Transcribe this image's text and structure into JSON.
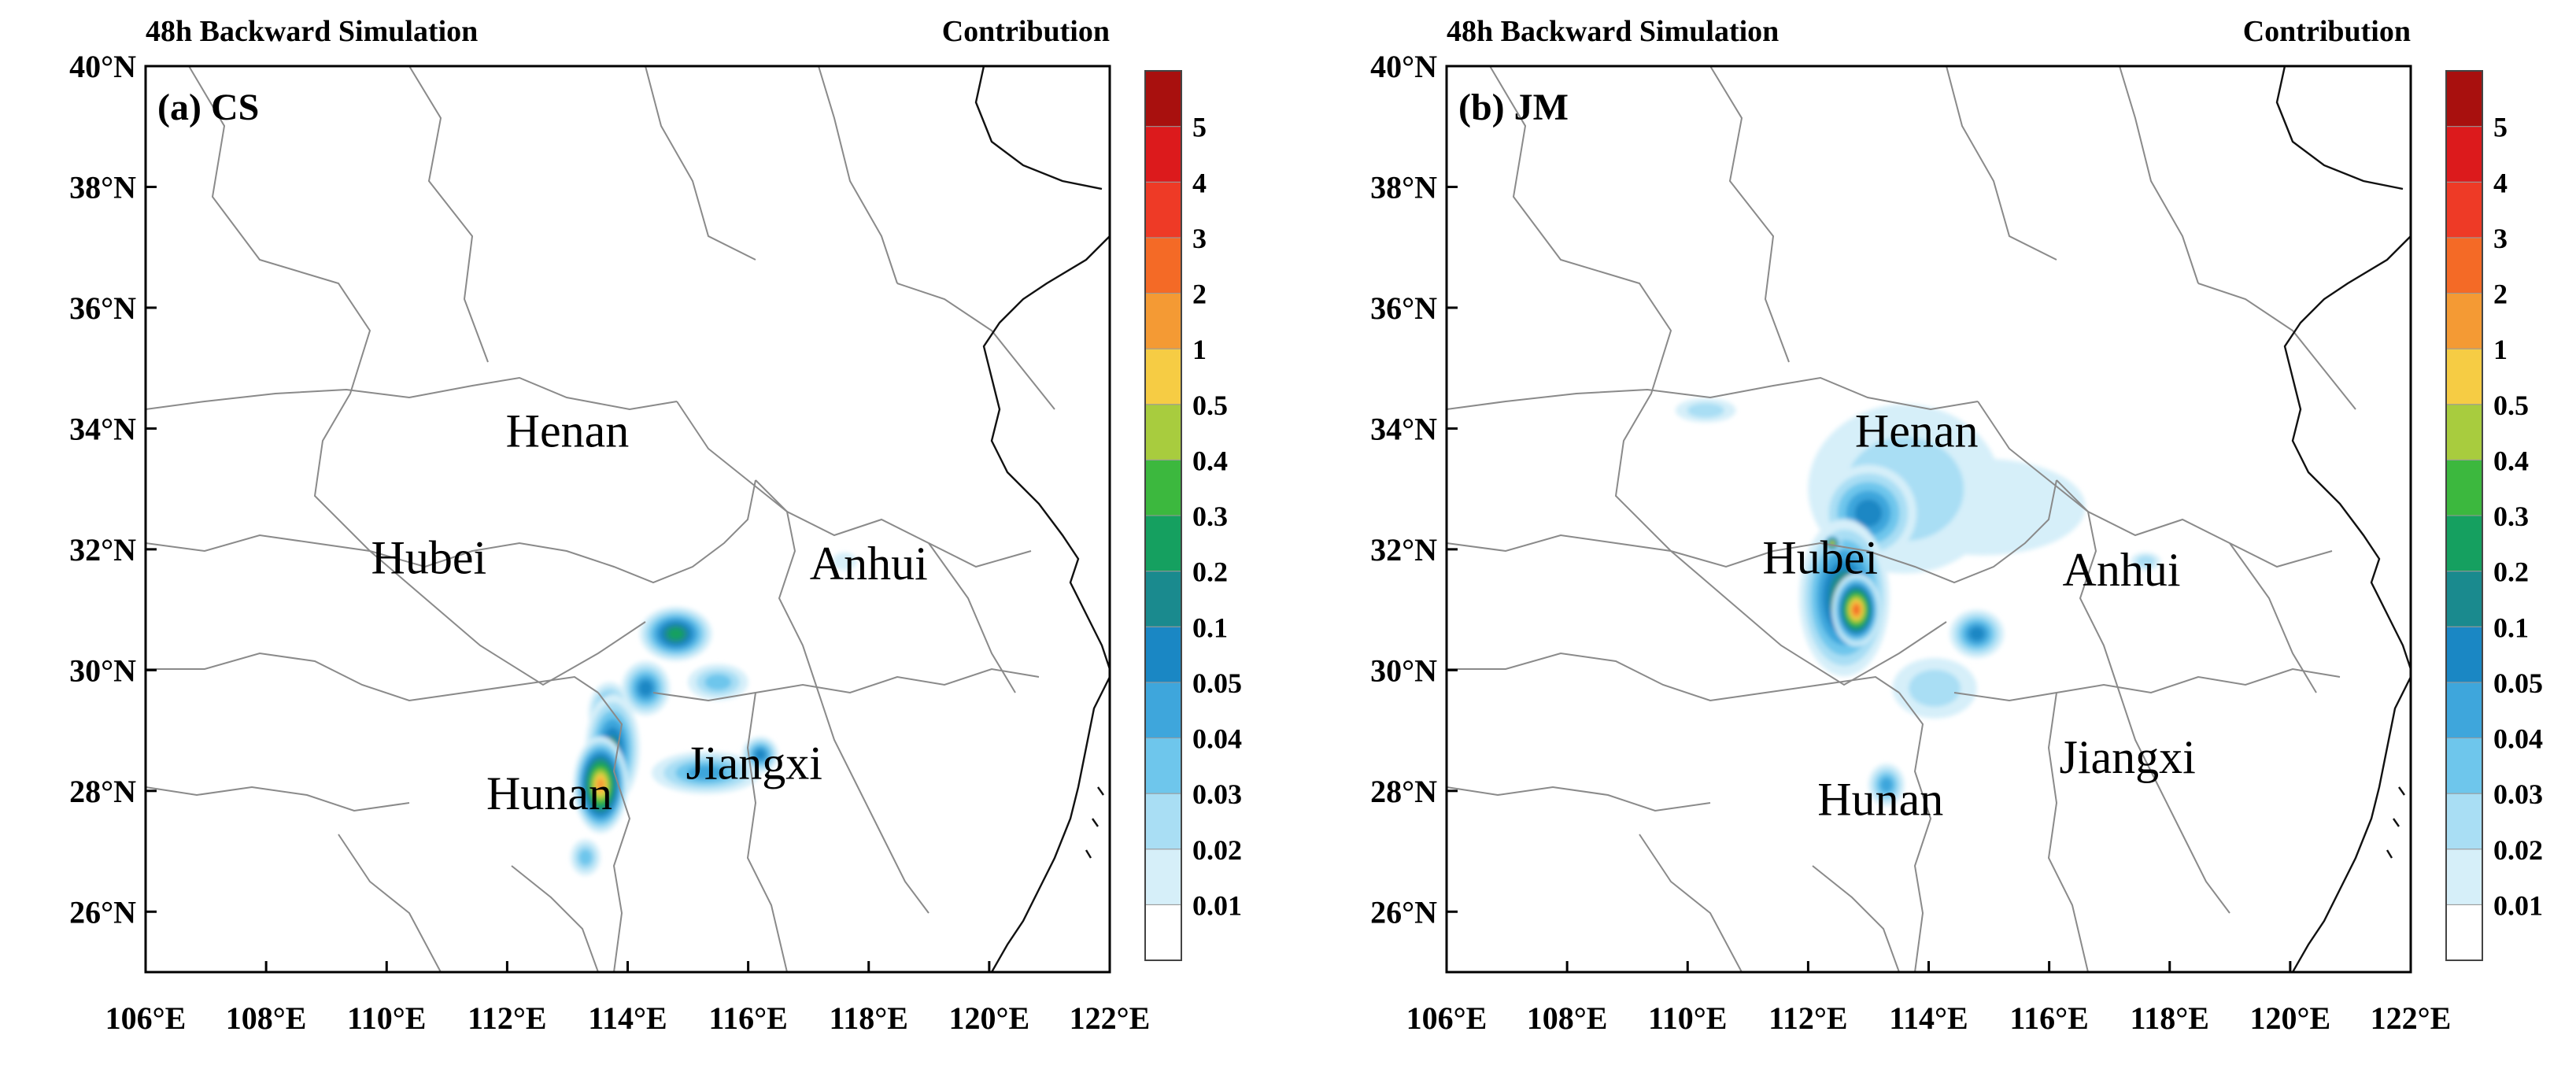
{
  "panel_header_left": "48h Backward Simulation",
  "panel_header_right": "Contribution",
  "lat_labels": [
    "40°N",
    "38°N",
    "36°N",
    "34°N",
    "32°N",
    "30°N",
    "28°N",
    "26°N"
  ],
  "lon_labels": [
    "106°E",
    "108°E",
    "110°E",
    "112°E",
    "114°E",
    "116°E",
    "118°E",
    "120°E",
    "122°E"
  ],
  "colorbar": {
    "labels": [
      "0.01",
      "0.02",
      "0.03",
      "0.04",
      "0.05",
      "0.1",
      "0.2",
      "0.3",
      "0.4",
      "0.5",
      "1",
      "2",
      "3",
      "4",
      "5"
    ],
    "colors": [
      "#ffffff",
      "#d6eff9",
      "#a9def4",
      "#6ec6ec",
      "#3ea6dc",
      "#1a87c4",
      "#1a8a8e",
      "#15a060",
      "#3cb83e",
      "#a8cc3e",
      "#f6cc44",
      "#f49a34",
      "#f46a26",
      "#ee3a26",
      "#dc1a1c",
      "#a8100e"
    ]
  },
  "panels": [
    {
      "label": "(a) CS",
      "provinces": [
        {
          "name": "Henan",
          "lon": 113.0,
          "lat": 33.7
        },
        {
          "name": "Hubei",
          "lon": 110.7,
          "lat": 31.6
        },
        {
          "name": "Anhui",
          "lon": 118.0,
          "lat": 31.5
        },
        {
          "name": "Hunan",
          "lon": 112.7,
          "lat": 27.7
        },
        {
          "name": "Jiangxi",
          "lon": 116.1,
          "lat": 28.2
        }
      ]
    },
    {
      "label": "(b) JM",
      "provinces": [
        {
          "name": "Henan",
          "lon": 113.8,
          "lat": 33.7
        },
        {
          "name": "Hubei",
          "lon": 112.2,
          "lat": 31.6
        },
        {
          "name": "Anhui",
          "lon": 117.2,
          "lat": 31.4
        },
        {
          "name": "Hunan",
          "lon": 113.2,
          "lat": 27.6
        },
        {
          "name": "Jiangxi",
          "lon": 117.3,
          "lat": 28.3
        }
      ]
    }
  ],
  "map_extent": {
    "lon_min": 106,
    "lon_max": 122,
    "lat_min": 25,
    "lat_max": 40
  },
  "contribution_field": [
    [
      {
        "lon": 113.55,
        "lat": 28.1,
        "value": 1.2,
        "rx": 0.45,
        "ry": 0.8
      },
      {
        "lon": 113.75,
        "lat": 28.7,
        "value": 0.15,
        "rx": 0.45,
        "ry": 0.9
      },
      {
        "lon": 113.7,
        "lat": 29.3,
        "value": 0.08,
        "rx": 0.35,
        "ry": 0.5
      },
      {
        "lon": 114.3,
        "lat": 29.7,
        "value": 0.06,
        "rx": 0.4,
        "ry": 0.45
      },
      {
        "lon": 114.8,
        "lat": 30.6,
        "value": 0.2,
        "rx": 0.6,
        "ry": 0.45
      },
      {
        "lon": 115.5,
        "lat": 29.8,
        "value": 0.03,
        "rx": 0.5,
        "ry": 0.3
      },
      {
        "lon": 115.3,
        "lat": 28.3,
        "value": 0.04,
        "rx": 0.9,
        "ry": 0.35
      },
      {
        "lon": 116.2,
        "lat": 28.6,
        "value": 0.06,
        "rx": 0.3,
        "ry": 0.3
      },
      {
        "lon": 113.3,
        "lat": 26.9,
        "value": 0.03,
        "rx": 0.25,
        "ry": 0.3
      },
      {
        "lon": 117.6,
        "lat": 31.8,
        "value": 0.015,
        "rx": 0.2,
        "ry": 0.15
      }
    ],
    [
      {
        "lon": 112.8,
        "lat": 31.0,
        "value": 2.5,
        "rx": 0.4,
        "ry": 0.6
      },
      {
        "lon": 112.6,
        "lat": 31.2,
        "value": 0.2,
        "rx": 0.75,
        "ry": 1.3
      },
      {
        "lon": 113.0,
        "lat": 32.6,
        "value": 0.06,
        "rx": 0.8,
        "ry": 0.8
      },
      {
        "lon": 113.6,
        "lat": 33.0,
        "value": 0.02,
        "rx": 1.6,
        "ry": 1.4
      },
      {
        "lon": 114.9,
        "lat": 32.7,
        "value": 0.015,
        "rx": 1.7,
        "ry": 0.8
      },
      {
        "lon": 114.8,
        "lat": 30.6,
        "value": 0.07,
        "rx": 0.45,
        "ry": 0.4
      },
      {
        "lon": 113.3,
        "lat": 28.1,
        "value": 0.04,
        "rx": 0.3,
        "ry": 0.35
      },
      {
        "lon": 110.3,
        "lat": 34.3,
        "value": 0.02,
        "rx": 0.5,
        "ry": 0.2
      },
      {
        "lon": 112.4,
        "lat": 32.1,
        "value": 0.5,
        "rx": 0.15,
        "ry": 0.15
      },
      {
        "lon": 114.1,
        "lat": 29.7,
        "value": 0.02,
        "rx": 0.7,
        "ry": 0.5
      },
      {
        "lon": 117.6,
        "lat": 31.8,
        "value": 0.02,
        "rx": 0.25,
        "ry": 0.15
      }
    ]
  ]
}
